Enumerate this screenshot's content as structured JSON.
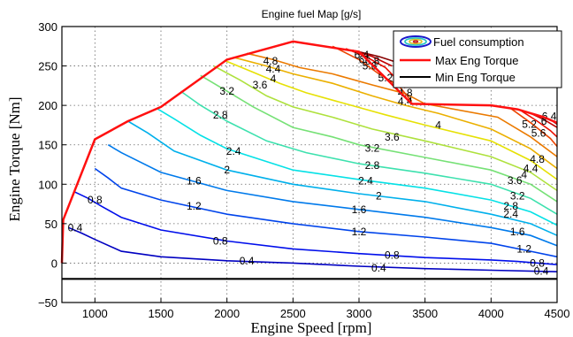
{
  "chart_data": {
    "type": "contour",
    "title": "Engine fuel Map [g/s]",
    "xlabel": "Engine Speed [rpm]",
    "ylabel": "Engine Torque [Nm]",
    "xlim": [
      750,
      4500
    ],
    "ylim": [
      -50,
      300
    ],
    "xticks": [
      1000,
      1500,
      2000,
      2500,
      3000,
      3500,
      4000,
      4500
    ],
    "yticks": [
      -50,
      0,
      50,
      100,
      150,
      200,
      250,
      300
    ],
    "xtick_labels": [
      "1000",
      "1500",
      "2000",
      "2500",
      "3000",
      "3500",
      "4000",
      "4500"
    ],
    "ytick_labels": [
      "−50",
      "0",
      "50",
      "100",
      "150",
      "200",
      "250",
      "300"
    ],
    "grid": true,
    "legend_position": "top-right",
    "legend": [
      {
        "label": "Fuel consumption",
        "color": "#2b2bd0"
      },
      {
        "label": "Max Eng Torque",
        "color": "#ff0000"
      },
      {
        "label": "Min Eng Torque",
        "color": "#000000"
      }
    ],
    "max_torque": {
      "x": [
        750,
        760,
        1000,
        1250,
        1500,
        2000,
        2500,
        3000,
        3400,
        4000,
        4200,
        4400,
        4500
      ],
      "y": [
        0,
        55,
        157,
        180,
        198,
        258,
        281,
        268,
        202,
        200,
        195,
        185,
        178
      ]
    },
    "min_torque": {
      "x": [
        750,
        760,
        4500
      ],
      "y": [
        -20,
        -20,
        -20
      ]
    },
    "contours": [
      {
        "level": 0.4,
        "label": "0.4",
        "x": [
          800,
          900,
          1000,
          1200,
          1500,
          2000,
          2500,
          3000,
          3500,
          4000,
          4500
        ],
        "y": [
          45,
          38,
          30,
          15,
          8,
          3,
          0,
          -4,
          -7,
          -9,
          -11
        ]
      },
      {
        "level": 0.8,
        "label": "0.8",
        "x": [
          850,
          950,
          1050,
          1200,
          1500,
          2000,
          2500,
          3000,
          3500,
          4000,
          4200,
          4500
        ],
        "y": [
          90,
          82,
          72,
          58,
          42,
          28,
          18,
          12,
          7,
          4,
          2,
          -2
        ]
      },
      {
        "level": 1.2,
        "label": "1.2",
        "x": [
          1000,
          1100,
          1200,
          1500,
          2000,
          2500,
          3000,
          3500,
          4000,
          4300,
          4500
        ],
        "y": [
          120,
          108,
          95,
          80,
          62,
          50,
          40,
          33,
          25,
          15,
          8
        ]
      },
      {
        "level": 1.6,
        "label": "1.6",
        "x": [
          1100,
          1200,
          1500,
          2000,
          2500,
          3000,
          3500,
          4000,
          4300,
          4500
        ],
        "y": [
          150,
          140,
          115,
          92,
          78,
          68,
          58,
          45,
          35,
          22
        ]
      },
      {
        "level": 2.0,
        "label": "2",
        "x": [
          1250,
          1400,
          1600,
          2000,
          2500,
          3000,
          3500,
          4000,
          4300,
          4500
        ],
        "y": [
          180,
          165,
          142,
          118,
          100,
          88,
          78,
          62,
          50,
          35
        ]
      },
      {
        "level": 2.4,
        "label": "2.4",
        "x": [
          1470,
          1600,
          1800,
          2000,
          2500,
          3000,
          3500,
          4000,
          4300,
          4500
        ],
        "y": [
          196,
          183,
          162,
          145,
          118,
          106,
          95,
          80,
          65,
          48
        ]
      },
      {
        "level": 2.8,
        "label": "2.8",
        "x": [
          1650,
          1800,
          2000,
          2300,
          2600,
          3000,
          3500,
          4000,
          4300,
          4500
        ],
        "y": [
          218,
          200,
          180,
          155,
          140,
          126,
          114,
          100,
          82,
          62
        ]
      },
      {
        "level": 3.2,
        "label": "3.2",
        "x": [
          1800,
          2000,
          2200,
          2500,
          2800,
          3000,
          3500,
          4000,
          4300,
          4500
        ],
        "y": [
          238,
          218,
          198,
          172,
          160,
          150,
          134,
          118,
          100,
          78
        ]
      },
      {
        "level": 3.6,
        "label": "3.6",
        "x": [
          1900,
          2100,
          2300,
          2500,
          2800,
          3100,
          3500,
          4000,
          4300,
          4500
        ],
        "y": [
          250,
          232,
          212,
          198,
          185,
          170,
          155,
          135,
          115,
          92
        ]
      },
      {
        "level": 4.0,
        "label": "4",
        "x": [
          1980,
          2200,
          2400,
          2600,
          2900,
          3200,
          3500,
          4000,
          4300,
          4500
        ],
        "y": [
          257,
          242,
          228,
          216,
          202,
          188,
          175,
          155,
          130,
          106
        ]
      },
      {
        "level": 4.4,
        "label": "4.4",
        "x": [
          2050,
          2300,
          2500,
          2800,
          3100,
          3350,
          3600,
          4000,
          4300,
          4500
        ],
        "y": [
          261,
          250,
          240,
          228,
          212,
          200,
          190,
          170,
          145,
          120
        ]
      },
      {
        "level": 4.8,
        "label": "4.8",
        "x": [
          2150,
          2350,
          2550,
          2800,
          3100,
          3350,
          3500,
          4050,
          4300,
          4500
        ],
        "y": [
          266,
          258,
          248,
          240,
          226,
          215,
          202,
          185,
          160,
          135
        ]
      },
      {
        "level": 5.2,
        "label": "5.2",
        "x": [
          2800,
          3000,
          3150,
          3300,
          3400
        ],
        "y": [
          275,
          258,
          240,
          225,
          205
        ]
      },
      {
        "level": 5.6,
        "label": "5.6",
        "x": [
          2900,
          3050,
          3200,
          3350
        ],
        "y": [
          272,
          262,
          248,
          222
        ]
      },
      {
        "level": 6.0,
        "label": "6",
        "x": [
          2950,
          3100,
          3250
        ],
        "y": [
          270,
          262,
          250
        ]
      },
      {
        "level": 6.4,
        "label": "6.4",
        "x": [
          3000,
          3150,
          3280
        ],
        "y": [
          268,
          262,
          255
        ]
      },
      {
        "level": 5.2,
        "label": "5.2",
        "x": [
          4150,
          4300,
          4450,
          4500
        ],
        "y": [
          196,
          178,
          158,
          148
        ]
      },
      {
        "level": 5.6,
        "label": "5.6",
        "x": [
          4220,
          4350,
          4450,
          4500
        ],
        "y": [
          194,
          180,
          168,
          160
        ]
      },
      {
        "level": 6.0,
        "label": "6",
        "x": [
          4300,
          4400,
          4500
        ],
        "y": [
          190,
          182,
          172
        ]
      },
      {
        "level": 6.4,
        "label": "6.4",
        "x": [
          4380,
          4450,
          4500
        ],
        "y": [
          186,
          182,
          176
        ]
      }
    ],
    "contour_labels": [
      {
        "text": "0.4",
        "x": 2150,
        "y": 3
      },
      {
        "text": "0.4",
        "x": 3150,
        "y": -6
      },
      {
        "text": "0.4",
        "x": 4380,
        "y": -10
      },
      {
        "text": "0.4",
        "x": 850,
        "y": 45
      },
      {
        "text": "0.8",
        "x": 1950,
        "y": 28
      },
      {
        "text": "0.8",
        "x": 3250,
        "y": 10
      },
      {
        "text": "0.8",
        "x": 4350,
        "y": 0
      },
      {
        "text": "0.8",
        "x": 1000,
        "y": 80
      },
      {
        "text": "1.2",
        "x": 1750,
        "y": 72
      },
      {
        "text": "1.2",
        "x": 3000,
        "y": 40
      },
      {
        "text": "1.2",
        "x": 4250,
        "y": 18
      },
      {
        "text": "1.6",
        "x": 1750,
        "y": 104
      },
      {
        "text": "1.6",
        "x": 3000,
        "y": 68
      },
      {
        "text": "1.6",
        "x": 4200,
        "y": 40
      },
      {
        "text": "2",
        "x": 2000,
        "y": 118
      },
      {
        "text": "2",
        "x": 3150,
        "y": 85
      },
      {
        "text": "2.4",
        "x": 2050,
        "y": 142
      },
      {
        "text": "2.4",
        "x": 3050,
        "y": 104
      },
      {
        "text": "2.4",
        "x": 4150,
        "y": 62
      },
      {
        "text": "2.8",
        "x": 1950,
        "y": 188
      },
      {
        "text": "2.8",
        "x": 3100,
        "y": 124
      },
      {
        "text": "2.8",
        "x": 4150,
        "y": 72
      },
      {
        "text": "3.2",
        "x": 2000,
        "y": 218
      },
      {
        "text": "3.2",
        "x": 3100,
        "y": 146
      },
      {
        "text": "3.2",
        "x": 4200,
        "y": 85
      },
      {
        "text": "3.6",
        "x": 2250,
        "y": 226
      },
      {
        "text": "3.6",
        "x": 3250,
        "y": 160
      },
      {
        "text": "3.6",
        "x": 4180,
        "y": 105
      },
      {
        "text": "4",
        "x": 2350,
        "y": 234
      },
      {
        "text": "4",
        "x": 3600,
        "y": 175
      },
      {
        "text": "4",
        "x": 4250,
        "y": 112
      },
      {
        "text": "4.4",
        "x": 2350,
        "y": 246
      },
      {
        "text": "4.4",
        "x": 3350,
        "y": 205
      },
      {
        "text": "4.4",
        "x": 4300,
        "y": 120
      },
      {
        "text": "4.8",
        "x": 2330,
        "y": 256
      },
      {
        "text": "4.8",
        "x": 3350,
        "y": 216
      },
      {
        "text": "4.8",
        "x": 4350,
        "y": 132
      },
      {
        "text": "5.2",
        "x": 3200,
        "y": 235
      },
      {
        "text": "5.2",
        "x": 4290,
        "y": 176
      },
      {
        "text": "5.6",
        "x": 3080,
        "y": 250
      },
      {
        "text": "5.6",
        "x": 4360,
        "y": 165
      },
      {
        "text": "6",
        "x": 3020,
        "y": 258
      },
      {
        "text": "6",
        "x": 4400,
        "y": 180
      },
      {
        "text": "6.4",
        "x": 3020,
        "y": 264
      },
      {
        "text": "6.4",
        "x": 4440,
        "y": 186
      },
      {
        "text": "6.8",
        "x": 3100,
        "y": 256
      }
    ]
  }
}
